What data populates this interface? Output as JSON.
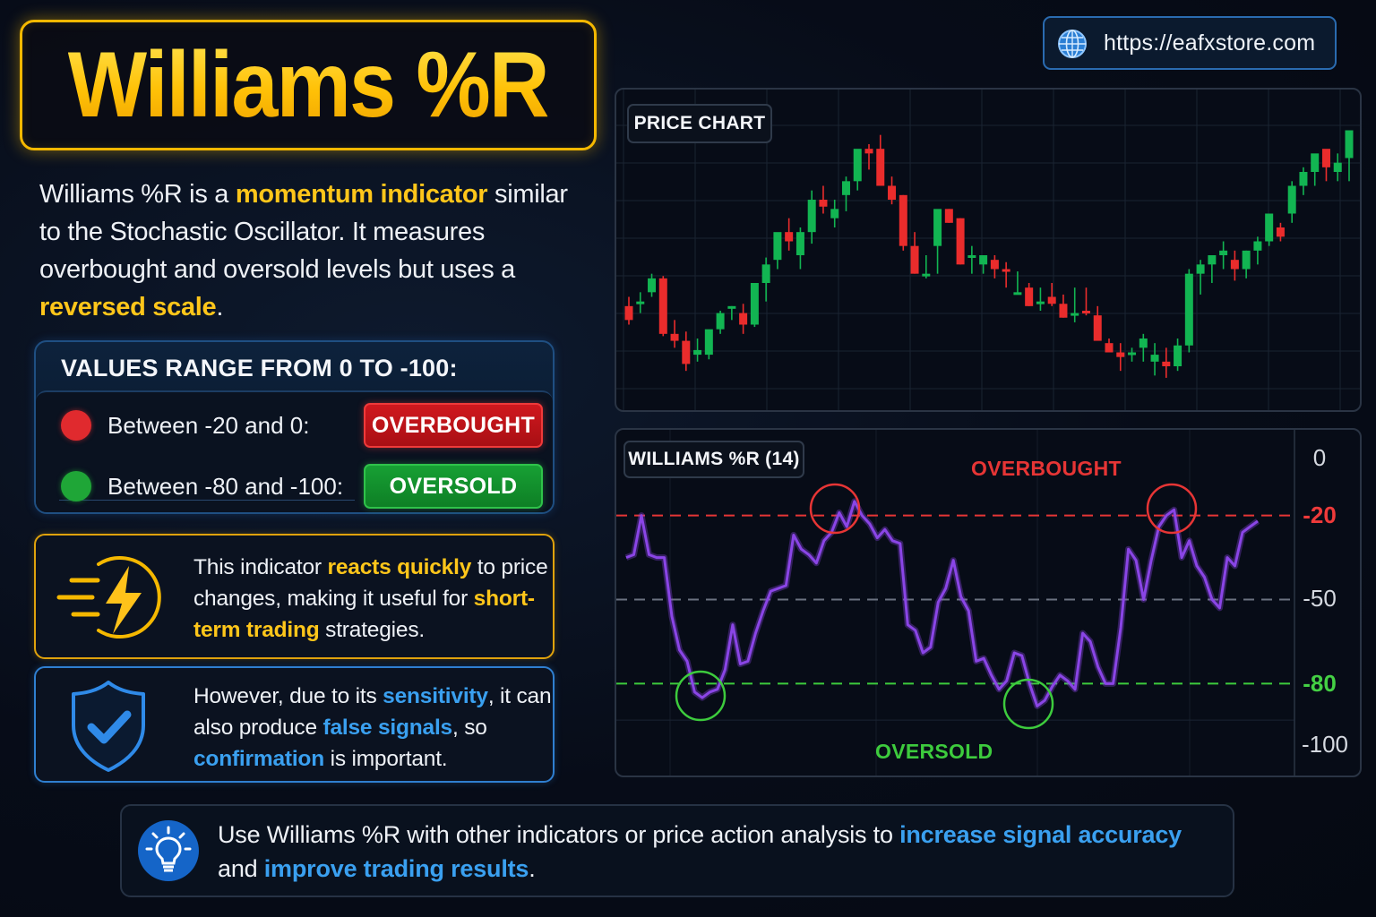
{
  "header": {
    "title": "Williams %R",
    "url": "https://eafxstore.com"
  },
  "intro": {
    "part1": "Williams %R is a ",
    "highlight1": "momentum indicator",
    "part2": " similar to the Stochastic Oscillator. It measures overbought and oversold levels but uses a ",
    "highlight2": "reversed scale",
    "part3": "."
  },
  "range": {
    "title": "VALUES RANGE FROM 0 TO -100:",
    "rows": [
      {
        "label": "Between -20 and 0:",
        "badge": "OVERBOUGHT",
        "dot_color": "#e02a2e",
        "badge_color": "#c4161c"
      },
      {
        "label": "Between -80 and -100:",
        "badge": "OVERSOLD",
        "dot_color": "#1fa637",
        "badge_color": "#14932e"
      }
    ]
  },
  "cards": {
    "speed": {
      "part1": "This indicator ",
      "highlight1": "reacts quickly",
      "part2": " to price changes, making it useful for ",
      "highlight2": "short-term trading",
      "part3": " strategies."
    },
    "shield": {
      "part1": "However, due to its ",
      "highlight1": "sensitivity",
      "part2": ", it can also produce ",
      "highlight2": "false signals",
      "part3": ", so ",
      "highlight3": "confirmation",
      "part4": " is important."
    }
  },
  "tip": {
    "part1": "Use Williams %R with other indicators or price action analysis to ",
    "highlight1": "increase signal accuracy",
    "part2": " and ",
    "highlight2": "improve trading results",
    "part3": "."
  },
  "price_chart": {
    "tag": "PRICE CHART"
  },
  "wr_chart": {
    "tag": "WILLIAMS %R (14)",
    "overbought_label": "OVERBOUGHT",
    "oversold_label": "OVERSOLD",
    "axis": [
      "0",
      "-20",
      "-50",
      "-80",
      "-100"
    ]
  },
  "colors": {
    "accent_yellow": "#ffc61a",
    "accent_blue": "#3aa0f0",
    "bull": "#12b552",
    "bear": "#ea2c2c",
    "wr_line": "#8a45e6",
    "overbought": "#e63535",
    "oversold": "#3dcb3d"
  },
  "chart_data": [
    {
      "type": "candlestick",
      "title": "PRICE CHART",
      "note": "Candles listed left to right as [open, high, low, close] in relative price units (higher = higher price); values estimated from pixels.",
      "candles": [
        [
          58,
          62,
          50,
          52
        ],
        [
          60,
          64,
          55,
          60
        ],
        [
          64,
          72,
          62,
          70
        ],
        [
          70,
          71,
          45,
          46
        ],
        [
          46,
          52,
          40,
          43
        ],
        [
          43,
          47,
          30,
          33
        ],
        [
          37,
          44,
          34,
          39
        ],
        [
          37,
          47,
          35,
          48
        ],
        [
          48,
          56,
          46,
          55
        ],
        [
          57,
          58,
          52,
          58
        ],
        [
          55,
          59,
          46,
          50
        ],
        [
          50,
          66,
          49,
          68
        ],
        [
          68,
          79,
          60,
          76
        ],
        [
          78,
          88,
          74,
          90
        ],
        [
          90,
          96,
          82,
          86
        ],
        [
          80,
          92,
          74,
          90
        ],
        [
          90,
          108,
          85,
          104
        ],
        [
          104,
          110,
          98,
          101
        ],
        [
          96,
          104,
          92,
          100
        ],
        [
          106,
          114,
          99,
          112
        ],
        [
          112,
          122,
          108,
          126
        ],
        [
          126,
          128,
          117,
          124
        ],
        [
          126,
          132,
          110,
          110
        ],
        [
          110,
          114,
          102,
          104
        ],
        [
          106,
          106,
          82,
          84
        ],
        [
          84,
          90,
          72,
          72
        ],
        [
          72,
          80,
          70,
          72
        ],
        [
          84,
          96,
          72,
          100
        ],
        [
          100,
          100,
          94,
          94
        ],
        [
          96,
          96,
          76,
          76
        ],
        [
          80,
          84,
          72,
          80
        ],
        [
          76,
          78,
          72,
          80
        ],
        [
          78,
          80,
          70,
          74
        ],
        [
          74,
          77,
          66,
          73
        ],
        [
          64,
          73,
          63,
          64
        ],
        [
          66,
          68,
          58,
          58
        ],
        [
          60,
          66,
          56,
          60
        ],
        [
          62,
          68,
          58,
          59
        ],
        [
          59,
          63,
          53,
          53
        ],
        [
          54,
          66,
          51,
          55
        ],
        [
          56,
          66,
          54,
          55
        ],
        [
          54,
          58,
          44,
          43
        ],
        [
          42,
          44,
          38,
          38
        ],
        [
          38,
          42,
          30,
          36
        ],
        [
          38,
          40,
          34,
          38
        ],
        [
          40,
          46,
          34,
          44
        ],
        [
          34,
          42,
          28,
          37
        ],
        [
          34,
          40,
          27,
          32
        ],
        [
          32,
          44,
          30,
          41
        ],
        [
          41,
          74,
          38,
          72
        ],
        [
          72,
          78,
          63,
          76
        ],
        [
          76,
          80,
          68,
          80
        ],
        [
          80,
          86,
          74,
          82
        ],
        [
          78,
          82,
          69,
          74
        ],
        [
          74,
          82,
          70,
          82
        ],
        [
          82,
          88,
          76,
          86
        ],
        [
          86,
          98,
          84,
          98
        ],
        [
          92,
          94,
          86,
          88
        ],
        [
          98,
          112,
          94,
          110
        ],
        [
          110,
          118,
          106,
          116
        ],
        [
          116,
          122,
          110,
          124
        ],
        [
          126,
          124,
          112,
          118
        ],
        [
          116,
          124,
          112,
          120
        ],
        [
          122,
          134,
          112,
          134
        ]
      ],
      "grid": true
    },
    {
      "type": "line",
      "title": "WILLIAMS %R (14)",
      "ylabel": "",
      "ylim": [
        -100,
        0
      ],
      "yticks": [
        0,
        -20,
        -50,
        -80,
        -100
      ],
      "reference_lines": [
        {
          "value": -20,
          "label": "OVERBOUGHT",
          "color": "#e63535",
          "style": "dashed"
        },
        {
          "value": -50,
          "color": "#6b7280",
          "style": "dashed"
        },
        {
          "value": -80,
          "label": "OVERSOLD",
          "color": "#3dcb3d",
          "style": "dashed"
        }
      ],
      "series": [
        {
          "name": "Williams %R",
          "values": [
            -35,
            -34,
            -20,
            -34,
            -35,
            -35,
            -56,
            -68,
            -72,
            -83,
            -85,
            -83,
            -82,
            -75,
            -59,
            -73,
            -72,
            -62,
            -54,
            -47,
            -46,
            -45,
            -27,
            -32,
            -34,
            -37,
            -29,
            -26,
            -19,
            -24,
            -15,
            -20,
            -23,
            -28,
            -25,
            -29,
            -30,
            -59,
            -61,
            -69,
            -67,
            -51,
            -46,
            -36,
            -49,
            -54,
            -72,
            -71,
            -77,
            -82,
            -79,
            -69,
            -70,
            -80,
            -88,
            -86,
            -81,
            -77,
            -79,
            -82,
            -62,
            -65,
            -74,
            -80,
            -80,
            -60,
            -32,
            -36,
            -50,
            -36,
            -24,
            -20,
            -18,
            -35,
            -29,
            -38,
            -42,
            -50,
            -53,
            -35,
            -38,
            -26,
            -24,
            -22
          ]
        }
      ],
      "annotations": [
        {
          "type": "circle",
          "color": "#e63535",
          "at": "first peak near -18"
        },
        {
          "type": "circle",
          "color": "#3dcb3d",
          "at": "first trough near -85"
        },
        {
          "type": "circle",
          "color": "#3dcb3d",
          "at": "second trough near -88"
        },
        {
          "type": "circle",
          "color": "#e63535",
          "at": "second peak near -18"
        }
      ]
    }
  ]
}
